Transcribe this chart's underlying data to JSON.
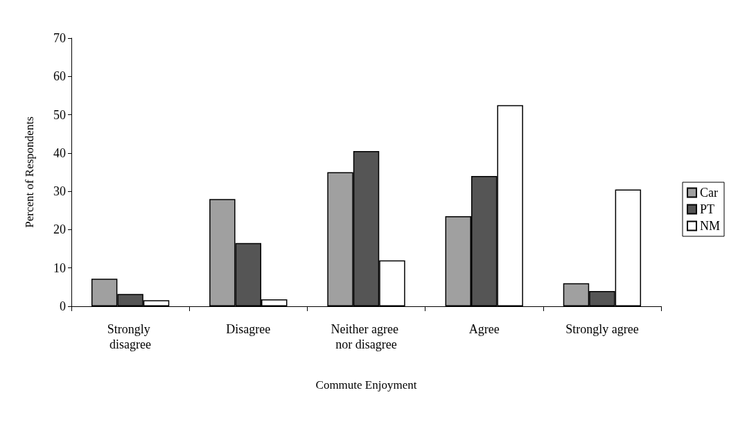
{
  "chart_data": {
    "type": "bar",
    "xlabel": "Commute Enjoyment",
    "ylabel": "Percent of Respondents",
    "categories": [
      "Strongly disagree",
      "Disagree",
      "Neither agree nor disagree",
      "Agree",
      "Strongly agree"
    ],
    "series": [
      {
        "name": "Car",
        "color": "#a0a0a0",
        "values": [
          7.2,
          28,
          35,
          23.5,
          6
        ]
      },
      {
        "name": "PT",
        "color": "#555555",
        "values": [
          3.2,
          16.5,
          40.5,
          34,
          4
        ]
      },
      {
        "name": "NM",
        "color": "#ffffff",
        "values": [
          1.6,
          1.8,
          12,
          52.5,
          30.5
        ]
      }
    ],
    "ylim": [
      0,
      70
    ],
    "yticks": [
      0,
      10,
      20,
      30,
      40,
      50,
      60,
      70
    ],
    "grid": false,
    "legend": "right"
  }
}
